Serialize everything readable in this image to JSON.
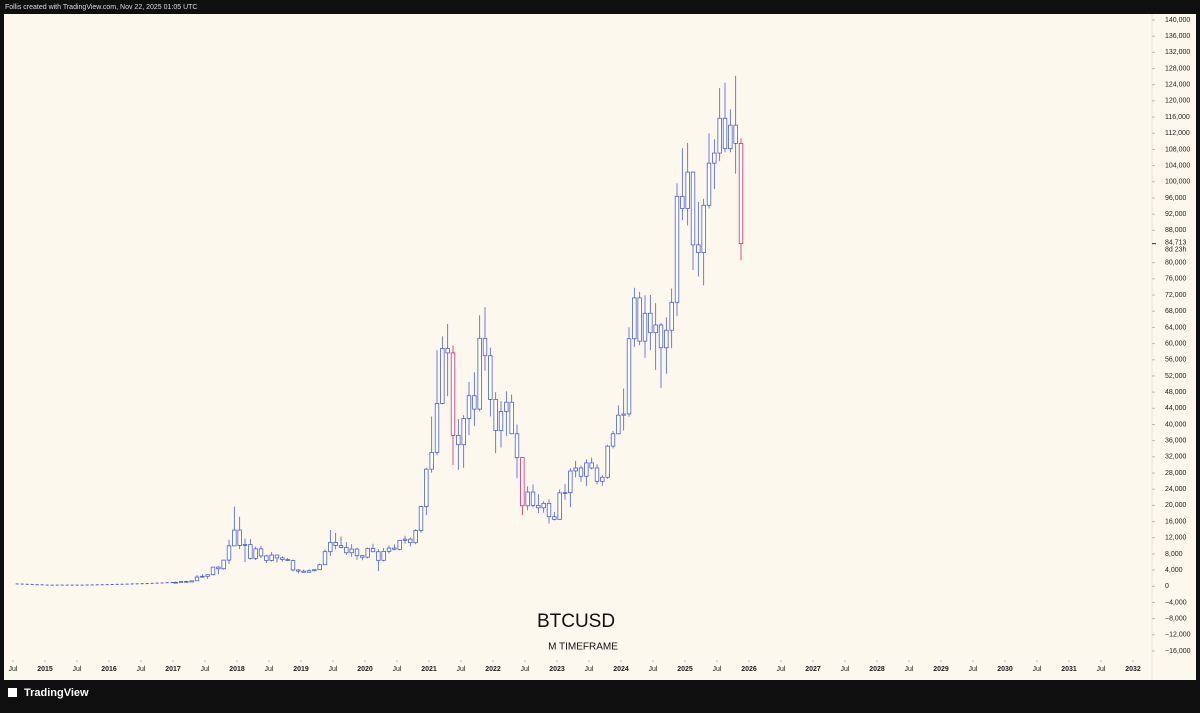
{
  "header": "Follis created with TradingView.com, Nov 22, 2025 01:05 UTC",
  "footer": "TradingView",
  "chart_data": {
    "type": "candlestick",
    "title": "BTCUSD",
    "subtitle": "M TIMEFRAME",
    "up_color": "#4a5fd6",
    "highlight_color": "#d62a6a",
    "highlight": [
      "2021-05",
      "2022-06",
      "2025-11"
    ],
    "line": {
      "x": [
        "2014-07",
        "2015-01",
        "2015-07",
        "2016-01",
        "2016-07",
        "2017-01"
      ],
      "values": [
        600,
        300,
        280,
        430,
        650,
        960
      ],
      "color": "#4a5fd6",
      "dashed": true
    },
    "x": [
      "2017-01",
      "2017-02",
      "2017-03",
      "2017-04",
      "2017-05",
      "2017-06",
      "2017-07",
      "2017-08",
      "2017-09",
      "2017-10",
      "2017-11",
      "2017-12",
      "2018-01",
      "2018-02",
      "2018-03",
      "2018-04",
      "2018-05",
      "2018-06",
      "2018-07",
      "2018-08",
      "2018-09",
      "2018-10",
      "2018-11",
      "2018-12",
      "2019-01",
      "2019-02",
      "2019-03",
      "2019-04",
      "2019-05",
      "2019-06",
      "2019-07",
      "2019-08",
      "2019-09",
      "2019-10",
      "2019-11",
      "2019-12",
      "2020-01",
      "2020-02",
      "2020-03",
      "2020-04",
      "2020-05",
      "2020-06",
      "2020-07",
      "2020-08",
      "2020-09",
      "2020-10",
      "2020-11",
      "2020-12",
      "2021-01",
      "2021-02",
      "2021-03",
      "2021-04",
      "2021-05",
      "2021-06",
      "2021-07",
      "2021-08",
      "2021-09",
      "2021-10",
      "2021-11",
      "2021-12",
      "2022-01",
      "2022-02",
      "2022-03",
      "2022-04",
      "2022-05",
      "2022-06",
      "2022-07",
      "2022-08",
      "2022-09",
      "2022-10",
      "2022-11",
      "2022-12",
      "2023-01",
      "2023-02",
      "2023-03",
      "2023-04",
      "2023-05",
      "2023-06",
      "2023-07",
      "2023-08",
      "2023-09",
      "2023-10",
      "2023-11",
      "2023-12",
      "2024-01",
      "2024-02",
      "2024-03",
      "2024-04",
      "2024-05",
      "2024-06",
      "2024-07",
      "2024-08",
      "2024-09",
      "2024-10",
      "2024-11",
      "2024-12",
      "2025-01",
      "2025-02",
      "2025-03",
      "2025-04",
      "2025-05",
      "2025-06",
      "2025-07",
      "2025-08",
      "2025-09",
      "2025-10",
      "2025-11"
    ],
    "open": [
      963,
      970,
      1190,
      1080,
      1350,
      2300,
      2480,
      2870,
      4740,
      4340,
      6470,
      10000,
      13900,
      10100,
      10300,
      6900,
      9250,
      7500,
      6400,
      7730,
      7030,
      6630,
      6370,
      4040,
      3740,
      3460,
      3850,
      4100,
      5320,
      8560,
      10820,
      10080,
      9590,
      8290,
      9200,
      7560,
      7190,
      9350,
      8540,
      6420,
      8630,
      9450,
      9140,
      11350,
      11650,
      10780,
      13800,
      19700,
      28950,
      33100,
      45200,
      58800,
      57700,
      37300,
      35000,
      41500,
      47100,
      43800,
      61300,
      57000,
      46200,
      38500,
      43200,
      45500,
      37700,
      31800,
      19900,
      23300,
      20000,
      19400,
      20500,
      17200,
      16550,
      23100,
      23150,
      28500,
      29250,
      27200,
      30500,
      29250,
      25950,
      26950,
      34650,
      37700,
      42300,
      42600,
      61200,
      71300,
      60600,
      67500,
      62700,
      64600,
      58970,
      63300,
      70200,
      96400,
      93400,
      102400,
      84400,
      82500,
      94200,
      104600,
      107100,
      115700,
      108200,
      114000,
      109500
    ],
    "high": [
      1190,
      1200,
      1350,
      1350,
      2760,
      3000,
      2900,
      4750,
      4980,
      6470,
      11500,
      19700,
      17200,
      11800,
      11700,
      9800,
      10000,
      7800,
      8500,
      7750,
      7400,
      7000,
      6600,
      4250,
      4100,
      4200,
      4150,
      5600,
      9100,
      13900,
      13200,
      12300,
      10950,
      10400,
      9520,
      7750,
      9600,
      10500,
      9200,
      9470,
      10070,
      10400,
      11450,
      12480,
      12070,
      14100,
      19900,
      29300,
      41950,
      58350,
      61800,
      64850,
      59500,
      41300,
      42300,
      50500,
      52900,
      67000,
      69000,
      59000,
      48000,
      45800,
      48200,
      47400,
      40000,
      31900,
      24700,
      25200,
      22800,
      21000,
      21500,
      18400,
      23950,
      25250,
      29200,
      31000,
      29850,
      31400,
      31800,
      30200,
      27500,
      35000,
      38400,
      44700,
      48900,
      64000,
      73800,
      72800,
      71950,
      72000,
      70000,
      65100,
      66500,
      73600,
      99600,
      108300,
      109600,
      102500,
      95000,
      95800,
      112000,
      110500,
      123200,
      124500,
      117900,
      126200,
      110700
    ],
    "low": [
      750,
      920,
      890,
      1060,
      1350,
      2100,
      1830,
      2670,
      2970,
      4110,
      5500,
      10400,
      9200,
      6000,
      6600,
      6500,
      7000,
      5750,
      6100,
      5880,
      6100,
      6200,
      3650,
      3150,
      3400,
      3390,
      3700,
      4080,
      5330,
      7500,
      9100,
      9400,
      7750,
      7300,
      6530,
      6430,
      6870,
      8500,
      3800,
      6150,
      8100,
      8900,
      8900,
      10500,
      9860,
      10400,
      13200,
      17600,
      28100,
      32400,
      45000,
      47000,
      30000,
      28800,
      29300,
      37400,
      39600,
      43300,
      53300,
      42000,
      32900,
      34300,
      37200,
      37600,
      26700,
      17600,
      18800,
      19500,
      18100,
      18200,
      15500,
      16300,
      16500,
      21400,
      19550,
      26900,
      25800,
      24800,
      28900,
      25200,
      24900,
      26550,
      34100,
      37600,
      38500,
      41900,
      59200,
      59600,
      56500,
      58400,
      53500,
      49000,
      52550,
      58900,
      66800,
      90500,
      89200,
      78200,
      76600,
      74400,
      93400,
      98200,
      105100,
      107300,
      107300,
      102000,
      80600
    ],
    "close": [
      970,
      1190,
      1080,
      1350,
      2300,
      2480,
      2870,
      4740,
      4340,
      6470,
      10000,
      13900,
      10100,
      10300,
      6900,
      9250,
      7500,
      6400,
      7730,
      7030,
      6630,
      6370,
      4040,
      3740,
      3460,
      3850,
      4100,
      5320,
      8560,
      10820,
      10080,
      9590,
      8290,
      9200,
      7560,
      7190,
      9350,
      8540,
      6420,
      8630,
      9450,
      9140,
      11350,
      11650,
      10780,
      13800,
      19700,
      28950,
      33100,
      45200,
      58800,
      57700,
      37300,
      35000,
      41500,
      47100,
      43800,
      61300,
      57000,
      46200,
      38500,
      43200,
      45500,
      37700,
      31800,
      19900,
      23300,
      20000,
      19400,
      20500,
      17200,
      16550,
      23100,
      23150,
      28500,
      29250,
      27200,
      30500,
      29250,
      25950,
      26950,
      34650,
      37700,
      42300,
      42600,
      61200,
      71300,
      60600,
      67500,
      62700,
      64600,
      58970,
      63300,
      70200,
      96400,
      93400,
      102400,
      84400,
      82500,
      94200,
      104600,
      107100,
      115700,
      108200,
      114000,
      109500,
      84713
    ],
    "last_price": {
      "value": 84713,
      "label": "84,713"
    },
    "countdown": "8d 23h",
    "ylim": [
      -17500,
      141500
    ],
    "yticks": [
      {
        "value": 140000,
        "label": "140,000"
      },
      {
        "value": 136000,
        "label": "136,000"
      },
      {
        "value": 132000,
        "label": "132,000"
      },
      {
        "value": 128000,
        "label": "128,000"
      },
      {
        "value": 124000,
        "label": "124,000"
      },
      {
        "value": 120000,
        "label": "120,000"
      },
      {
        "value": 116000,
        "label": "116,000"
      },
      {
        "value": 112000,
        "label": "112,000"
      },
      {
        "value": 108000,
        "label": "108,000"
      },
      {
        "value": 104000,
        "label": "104,000"
      },
      {
        "value": 100000,
        "label": "100,000"
      },
      {
        "value": 96000,
        "label": "96,000"
      },
      {
        "value": 92000,
        "label": "92,000"
      },
      {
        "value": 88000,
        "label": "88,000"
      },
      {
        "value": 80000,
        "label": "80,000"
      },
      {
        "value": 76000,
        "label": "76,000"
      },
      {
        "value": 72000,
        "label": "72,000"
      },
      {
        "value": 68000,
        "label": "68,000"
      },
      {
        "value": 64000,
        "label": "64,000"
      },
      {
        "value": 60000,
        "label": "60,000"
      },
      {
        "value": 56000,
        "label": "56,000"
      },
      {
        "value": 52000,
        "label": "52,000"
      },
      {
        "value": 48000,
        "label": "48,000"
      },
      {
        "value": 44000,
        "label": "44,000"
      },
      {
        "value": 40000,
        "label": "40,000"
      },
      {
        "value": 36000,
        "label": "36,000"
      },
      {
        "value": 32000,
        "label": "32,000"
      },
      {
        "value": 28000,
        "label": "28,000"
      },
      {
        "value": 24000,
        "label": "24,000"
      },
      {
        "value": 20000,
        "label": "20,000"
      },
      {
        "value": 16000,
        "label": "16,000"
      },
      {
        "value": 12000,
        "label": "12,000"
      },
      {
        "value": 8000,
        "label": "8,000"
      },
      {
        "value": 4000,
        "label": "4,000"
      },
      0,
      {
        "value": -4000,
        "label": "−4,000"
      },
      {
        "value": -8000,
        "label": "−8,000"
      },
      {
        "value": -12000,
        "label": "−12,000"
      },
      {
        "value": -16000,
        "label": "−16,000"
      }
    ],
    "xlim": [
      "2014-05",
      "2032-08"
    ],
    "xticks": [
      {
        "value": "2014-07",
        "label": "Jul"
      },
      {
        "value": "2015-01",
        "label": "2015"
      },
      {
        "value": "2015-07",
        "label": "Jul"
      },
      {
        "value": "2016-01",
        "label": "2016"
      },
      {
        "value": "2016-07",
        "label": "Jul"
      },
      {
        "value": "2017-01",
        "label": "2017"
      },
      {
        "value": "2017-07",
        "label": "Jul"
      },
      {
        "value": "2018-01",
        "label": "2018"
      },
      {
        "value": "2018-07",
        "label": "Jul"
      },
      {
        "value": "2019-01",
        "label": "2019"
      },
      {
        "value": "2019-07",
        "label": "Jul"
      },
      {
        "value": "2020-01",
        "label": "2020"
      },
      {
        "value": "2020-07",
        "label": "Jul"
      },
      {
        "value": "2021-01",
        "label": "2021"
      },
      {
        "value": "2021-07",
        "label": "Jul"
      },
      {
        "value": "2022-01",
        "label": "2022"
      },
      {
        "value": "2022-07",
        "label": "Jul"
      },
      {
        "value": "2023-01",
        "label": "2023"
      },
      {
        "value": "2023-07",
        "label": "Jul"
      },
      {
        "value": "2024-01",
        "label": "2024"
      },
      {
        "value": "2024-07",
        "label": "Jul"
      },
      {
        "value": "2025-01",
        "label": "2025"
      },
      {
        "value": "2025-07",
        "label": "Jul"
      },
      {
        "value": "2026-01",
        "label": "2026"
      },
      {
        "value": "2026-07",
        "label": "Jul"
      },
      {
        "value": "2027-01",
        "label": "2027"
      },
      {
        "value": "2027-07",
        "label": "Jul"
      },
      {
        "value": "2028-01",
        "label": "2028"
      },
      {
        "value": "2028-07",
        "label": "Jul"
      },
      {
        "value": "2029-01",
        "label": "2029"
      },
      {
        "value": "2029-07",
        "label": "Jul"
      },
      {
        "value": "2030-01",
        "label": "2030"
      },
      {
        "value": "2030-07",
        "label": "Jul"
      },
      {
        "value": "2031-01",
        "label": "2031"
      },
      {
        "value": "2031-07",
        "label": "Jul"
      },
      {
        "value": "2032-01",
        "label": "2032"
      }
    ]
  }
}
